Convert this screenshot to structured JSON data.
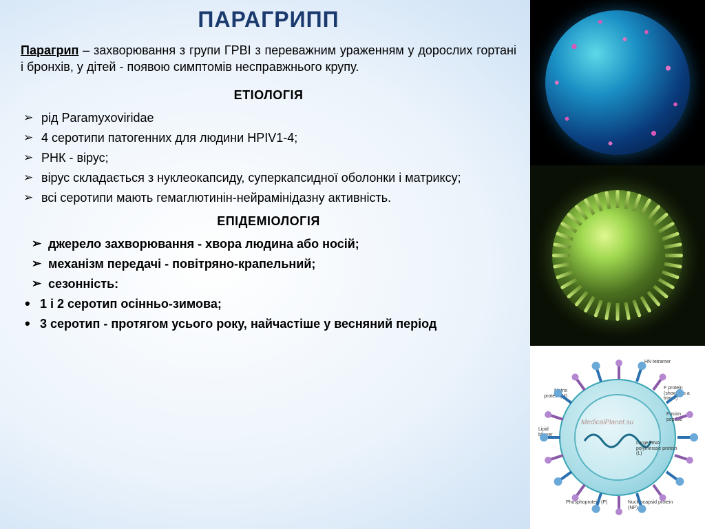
{
  "title": "ПАРАГРИПП",
  "definition_term": "Парагрип",
  "definition_text": " – захворювання з групи ГРВІ з переважним ураженням у дорослих гортані і бронхів, у дітей - появою симптомів несправжнього крупу.",
  "etiology_header": "ЕТІОЛОГІЯ",
  "etiology_items": [
    "рід Paramyxoviridae",
    "4 серотипи патогенних для людини HPIV1-4;",
    "РНК - вірус;",
    "вірус складається з нуклеокапсиду, суперкапсидної оболонки і матриксу;",
    "всі серотипи мають гемаглютинін-нейрамінідазну активність."
  ],
  "epidemiology_header": "ЕПІДЕМІОЛОГІЯ",
  "epidemiology_arrow_items": [
    "джерело захворювання - хвора людина або носій;",
    "механізм передачі - повітряно-крапельний;",
    "сезонність:"
  ],
  "epidemiology_dot_items": [
    "1 і 2 серотип осінньо-зимова;",
    "3 серотип - протягом усього року, найчастіше у весняний період"
  ],
  "diagram_labels": {
    "hn": "HN tetramer",
    "matrix": "Matrix protein (M)",
    "f_trimer": "F protein (shown as a trimer)",
    "fusion": "Fusion peptide",
    "lipid": "Lipid bilayer",
    "polymerase": "Large RNA polymerase protein (L)",
    "phospho": "Phosphoprotein (P)",
    "nucleo": "Nucleocapsid protein (NP)"
  },
  "watermark": "MedicalPlanet.su",
  "colors": {
    "title_color": "#1a3a6e",
    "virus1_bg": "#000000",
    "virus2_bg": "#0a1005",
    "virus3_bg": "#ffffff"
  }
}
